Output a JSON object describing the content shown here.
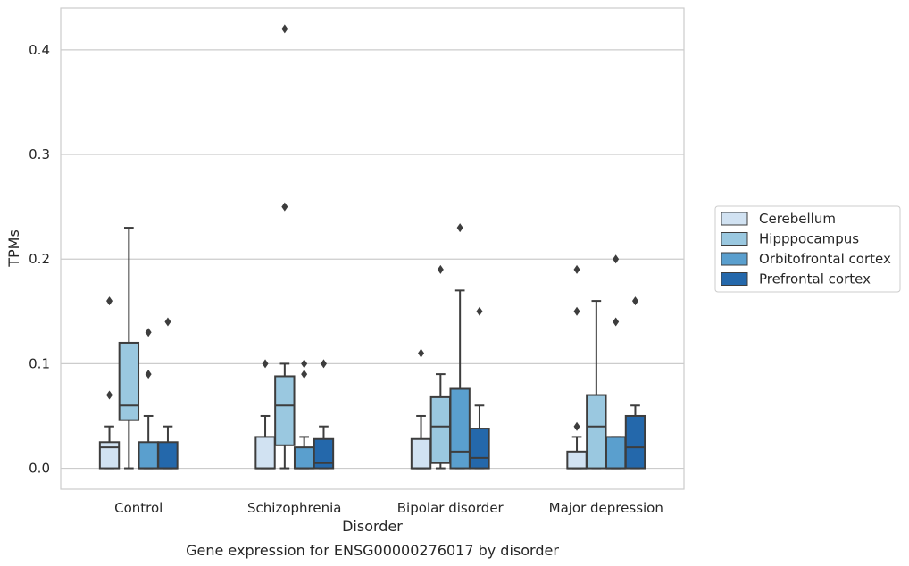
{
  "chart_data": {
    "type": "boxplot",
    "xlabel": "Disorder",
    "ylabel": "TPMs",
    "caption": "Gene expression for ENSG00000276017 by disorder",
    "ylim": [
      -0.02,
      0.44
    ],
    "yticks": [
      0.0,
      0.1,
      0.2,
      0.3,
      0.4
    ],
    "ytick_labels": [
      "0.0",
      "0.1",
      "0.2",
      "0.3",
      "0.4"
    ],
    "grid": "horizontal",
    "legend_position": "right",
    "categories": [
      "Control",
      "Schizophrenia",
      "Bipolar disorder",
      "Major depression"
    ],
    "series": [
      {
        "name": "Cerebellum",
        "color": "#d1e2f2",
        "boxes": [
          {
            "whislo": 0.0,
            "q1": 0.0,
            "med": 0.02,
            "q3": 0.025,
            "whishi": 0.04,
            "fliers": [
              0.07,
              0.16
            ]
          },
          {
            "whislo": 0.0,
            "q1": 0.0,
            "med": 0.0,
            "q3": 0.03,
            "whishi": 0.05,
            "fliers": [
              0.1
            ]
          },
          {
            "whislo": 0.0,
            "q1": 0.0,
            "med": 0.0,
            "q3": 0.028,
            "whishi": 0.05,
            "fliers": [
              0.11
            ]
          },
          {
            "whislo": 0.0,
            "q1": 0.0,
            "med": 0.0,
            "q3": 0.016,
            "whishi": 0.03,
            "fliers": [
              0.04,
              0.15,
              0.19
            ]
          }
        ]
      },
      {
        "name": "Hipppocampus",
        "color": "#9ac8e0",
        "boxes": [
          {
            "whislo": 0.0,
            "q1": 0.046,
            "med": 0.06,
            "q3": 0.12,
            "whishi": 0.23,
            "fliers": []
          },
          {
            "whislo": 0.0,
            "q1": 0.022,
            "med": 0.06,
            "q3": 0.088,
            "whishi": 0.1,
            "fliers": [
              0.25,
              0.42
            ]
          },
          {
            "whislo": 0.0,
            "q1": 0.005,
            "med": 0.04,
            "q3": 0.068,
            "whishi": 0.09,
            "fliers": [
              0.19
            ]
          },
          {
            "whislo": 0.0,
            "q1": 0.0,
            "med": 0.04,
            "q3": 0.07,
            "whishi": 0.16,
            "fliers": []
          }
        ]
      },
      {
        "name": "Orbitofrontal cortex",
        "color": "#5a9fce",
        "boxes": [
          {
            "whislo": 0.0,
            "q1": 0.0,
            "med": 0.0,
            "q3": 0.025,
            "whishi": 0.05,
            "fliers": [
              0.09,
              0.13
            ]
          },
          {
            "whislo": 0.0,
            "q1": 0.0,
            "med": 0.0,
            "q3": 0.02,
            "whishi": 0.03,
            "fliers": [
              0.09,
              0.1
            ]
          },
          {
            "whislo": 0.0,
            "q1": 0.0,
            "med": 0.016,
            "q3": 0.076,
            "whishi": 0.17,
            "fliers": [
              0.23
            ]
          },
          {
            "whislo": 0.0,
            "q1": 0.0,
            "med": 0.0,
            "q3": 0.03,
            "whishi": 0.03,
            "fliers": [
              0.14,
              0.2
            ]
          }
        ]
      },
      {
        "name": "Prefrontal cortex",
        "color": "#2468ab",
        "boxes": [
          {
            "whislo": 0.0,
            "q1": 0.0,
            "med": 0.0,
            "q3": 0.025,
            "whishi": 0.04,
            "fliers": [
              0.14
            ]
          },
          {
            "whislo": 0.0,
            "q1": 0.0,
            "med": 0.005,
            "q3": 0.028,
            "whishi": 0.04,
            "fliers": [
              0.1
            ]
          },
          {
            "whislo": 0.0,
            "q1": 0.0,
            "med": 0.01,
            "q3": 0.038,
            "whishi": 0.06,
            "fliers": [
              0.15
            ]
          },
          {
            "whislo": 0.0,
            "q1": 0.0,
            "med": 0.02,
            "q3": 0.05,
            "whishi": 0.06,
            "fliers": [
              0.16
            ]
          }
        ]
      }
    ]
  }
}
